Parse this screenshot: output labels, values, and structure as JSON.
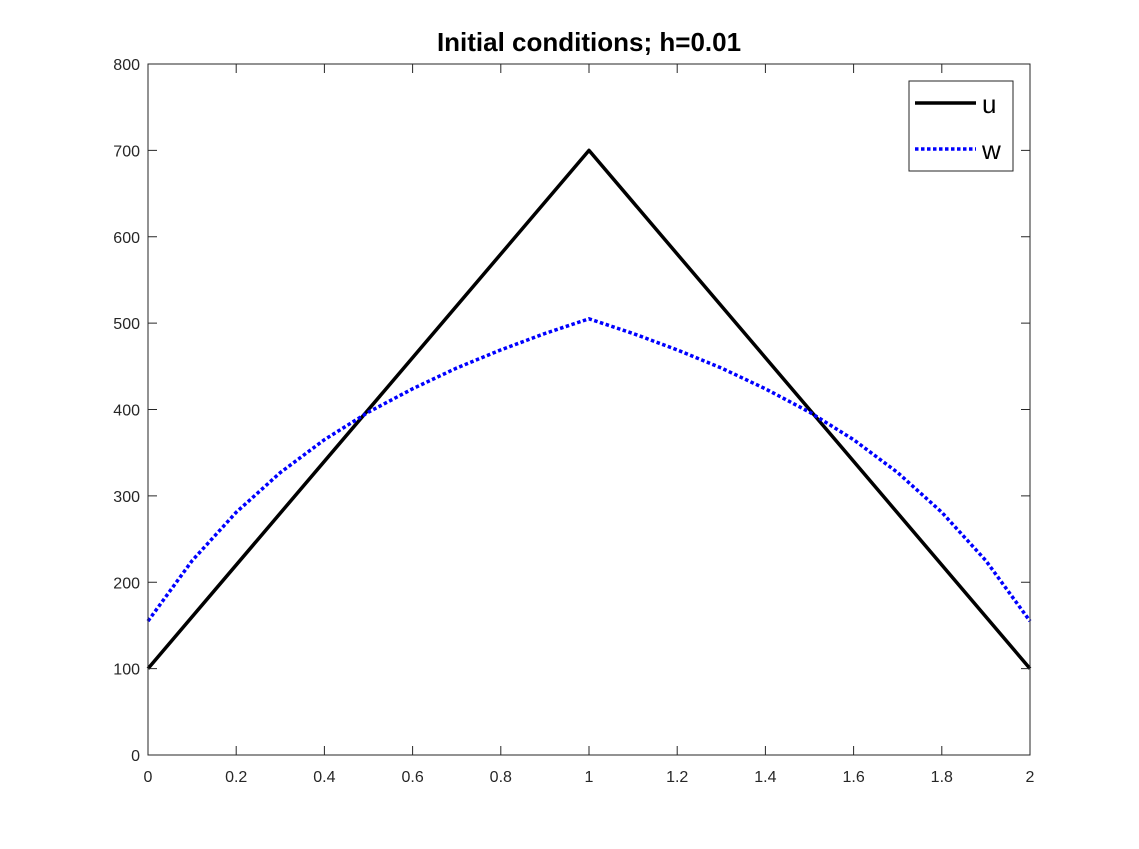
{
  "chart_data": {
    "type": "line",
    "title": "Initial conditions; h=0.01",
    "xlabel": "",
    "ylabel": "",
    "xlim": [
      0,
      2
    ],
    "ylim": [
      0,
      800
    ],
    "xticks": [
      0,
      0.2,
      0.4,
      0.6,
      0.8,
      1,
      1.2,
      1.4,
      1.6,
      1.8,
      2
    ],
    "xtick_labels": [
      "0",
      "0.2",
      "0.4",
      "0.6",
      "0.8",
      "1",
      "1.2",
      "1.4",
      "1.6",
      "1.8",
      "2"
    ],
    "yticks": [
      0,
      100,
      200,
      300,
      400,
      500,
      600,
      700,
      800
    ],
    "ytick_labels": [
      "0",
      "100",
      "200",
      "300",
      "400",
      "500",
      "600",
      "700",
      "800"
    ],
    "grid": false,
    "legend_position": "top-right",
    "series": [
      {
        "name": "u",
        "color": "#000000",
        "style": "solid",
        "x": [
          0,
          1,
          2
        ],
        "y": [
          100,
          700,
          100
        ]
      },
      {
        "name": "w",
        "color": "#0000ff",
        "style": "dotted",
        "x": [
          0,
          0.1,
          0.2,
          0.3,
          0.4,
          0.5,
          0.6,
          0.7,
          0.8,
          0.9,
          1,
          1.1,
          1.2,
          1.3,
          1.4,
          1.5,
          1.6,
          1.7,
          1.8,
          1.9,
          2
        ],
        "y": [
          155,
          225,
          281,
          327,
          365,
          397,
          424,
          448,
          469,
          488,
          505,
          488,
          469,
          448,
          424,
          397,
          365,
          327,
          281,
          225,
          155
        ]
      }
    ]
  }
}
